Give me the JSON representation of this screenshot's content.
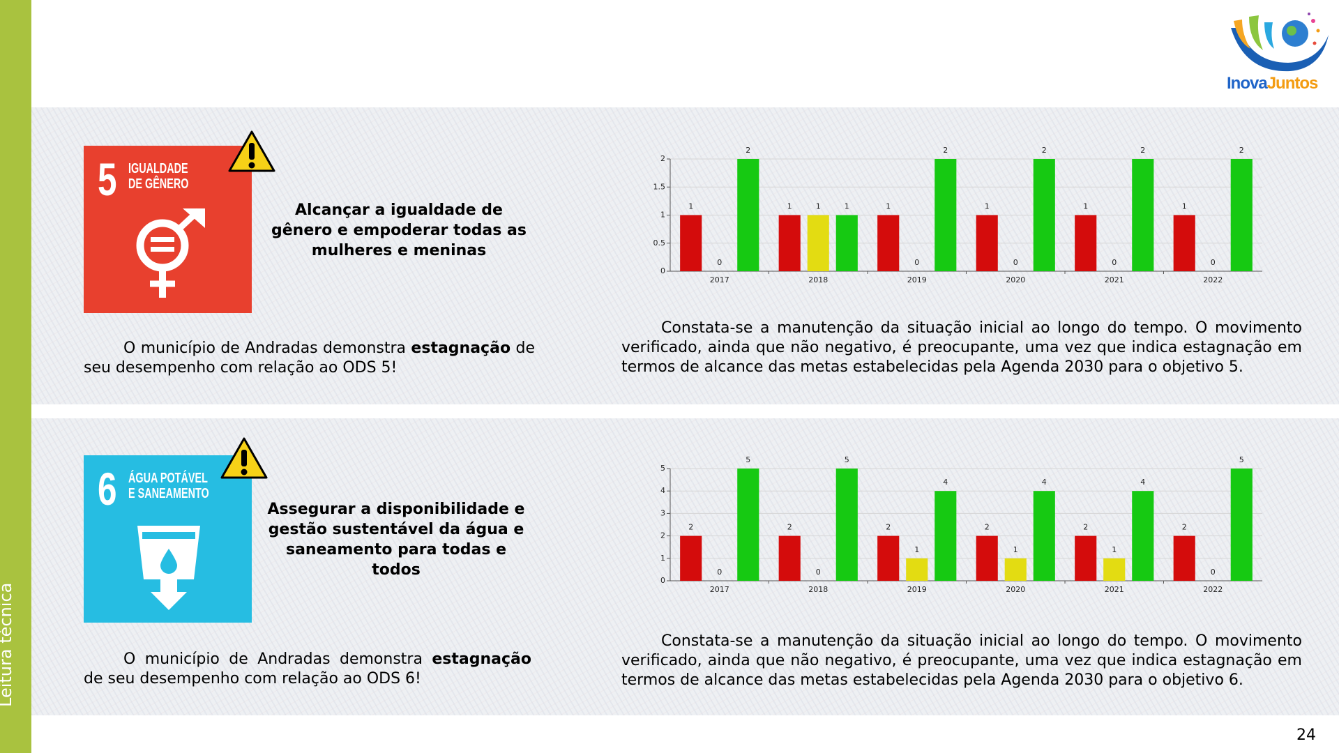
{
  "sidebar": {
    "label": "Leitura técnica"
  },
  "logo": {
    "first": "Inova",
    "second": "Juntos"
  },
  "page_number": "24",
  "sections": [
    {
      "sdg_number": "5",
      "sdg_title": [
        "IGUALDADE",
        "DE GÊNERO"
      ],
      "goal": "Alcançar a igualdade de gênero e empoderar todas as mulheres e meninas",
      "summary": [
        "O município de Andradas demonstra ",
        "estagnação",
        " de seu desempenho com relação ao ODS 5!"
      ],
      "commentary": "Constata-se a manutenção da situação inicial ao longo do tempo. O movimento verificado, ainda que não negativo, é preocupante, uma vez que indica estagnação em termos de alcance das metas estabelecidas pela Agenda 2030 para o objetivo 5."
    },
    {
      "sdg_number": "6",
      "sdg_title": [
        "ÁGUA POTÁVEL",
        "E SANEAMENTO"
      ],
      "goal": "Assegurar a disponibilidade e gestão sustentável da água e saneamento para todas e todos",
      "summary": [
        "O município de Andradas demonstra ",
        "estagnação",
        " de seu desempenho com relação ao ODS 6!"
      ],
      "commentary": "Constata-se a manutenção da situação inicial ao longo do tempo. O movimento verificado, ainda que não negativo, é preocupante, uma vez que indica estagnação em termos de alcance das metas estabelecidas pela Agenda 2030 para o objetivo 6."
    }
  ],
  "chart_data": [
    {
      "type": "bar",
      "categories": [
        "2017",
        "2018",
        "2019",
        "2020",
        "2021",
        "2022"
      ],
      "series": [
        {
          "color": "#d40c0c",
          "values": [
            1,
            1,
            1,
            1,
            1,
            1
          ]
        },
        {
          "color": "#e3dc12",
          "values": [
            0,
            1,
            0,
            0,
            0,
            0
          ]
        },
        {
          "color": "#16c912",
          "values": [
            2,
            1,
            2,
            2,
            2,
            2
          ]
        }
      ],
      "ylim": [
        0,
        2
      ],
      "yticks": [
        0,
        0.5,
        1,
        1.5,
        2
      ],
      "grid": true
    },
    {
      "type": "bar",
      "categories": [
        "2017",
        "2018",
        "2019",
        "2020",
        "2021",
        "2022"
      ],
      "series": [
        {
          "color": "#d40c0c",
          "values": [
            2,
            2,
            2,
            2,
            2,
            2
          ]
        },
        {
          "color": "#e3dc12",
          "values": [
            0,
            0,
            1,
            1,
            1,
            0
          ]
        },
        {
          "color": "#16c912",
          "values": [
            5,
            5,
            4,
            4,
            4,
            5
          ]
        }
      ],
      "ylim": [
        0,
        5
      ],
      "yticks": [
        0,
        1,
        2,
        3,
        4,
        5
      ],
      "grid": true
    }
  ]
}
